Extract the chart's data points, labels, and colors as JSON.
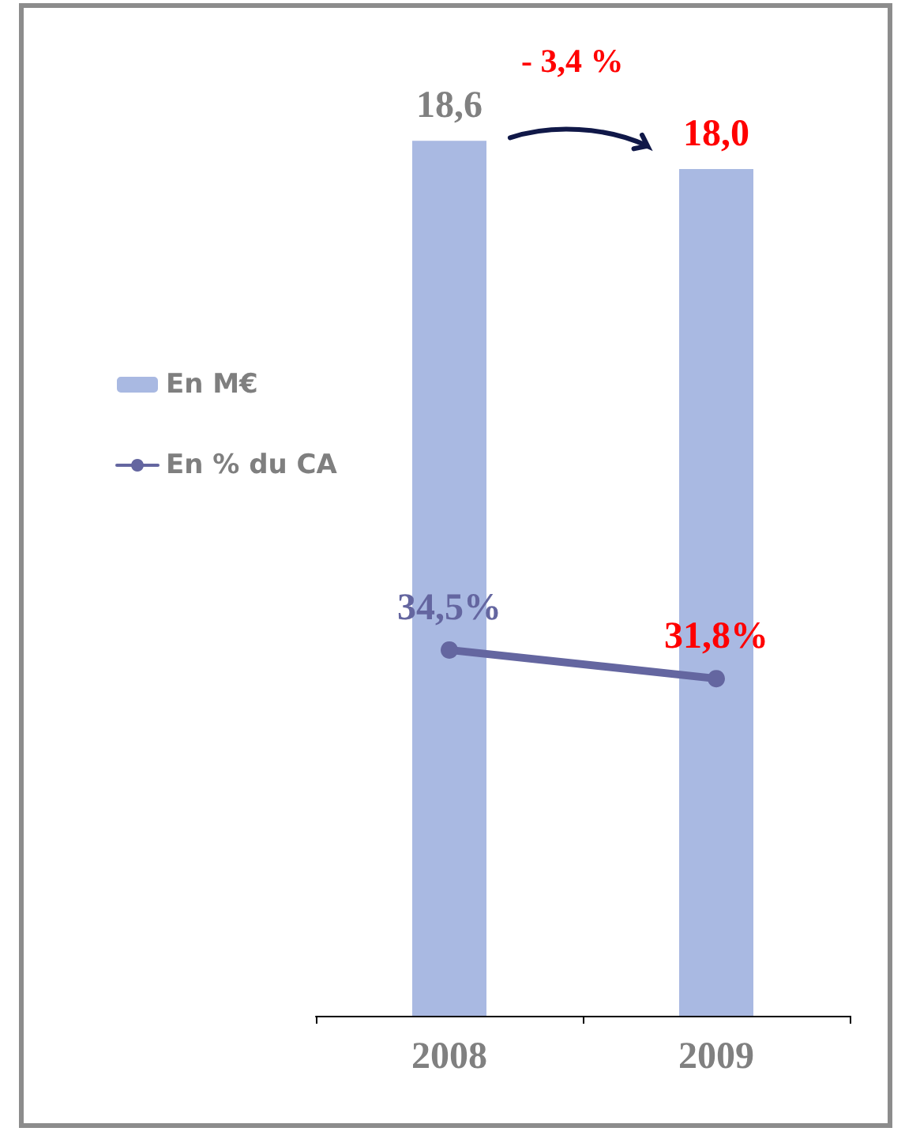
{
  "chart_data": {
    "type": "bar",
    "categories": [
      "2008",
      "2009"
    ],
    "series": [
      {
        "name": "En M€",
        "color": "#a9b9e2",
        "values": [
          18.6,
          18.0
        ],
        "value_labels": [
          "18,6",
          "18,0"
        ]
      },
      {
        "name": "En % du CA",
        "type": "line",
        "axis": "y2",
        "color": "#6466a0",
        "values": [
          34.5,
          31.8
        ],
        "value_labels": [
          "34,5%",
          "31,8%"
        ]
      }
    ],
    "tick_labels": "x",
    "marker": "circle",
    "legend": "left",
    "grid": false,
    "annotations": [
      "- 3,4 %"
    ]
  }
}
